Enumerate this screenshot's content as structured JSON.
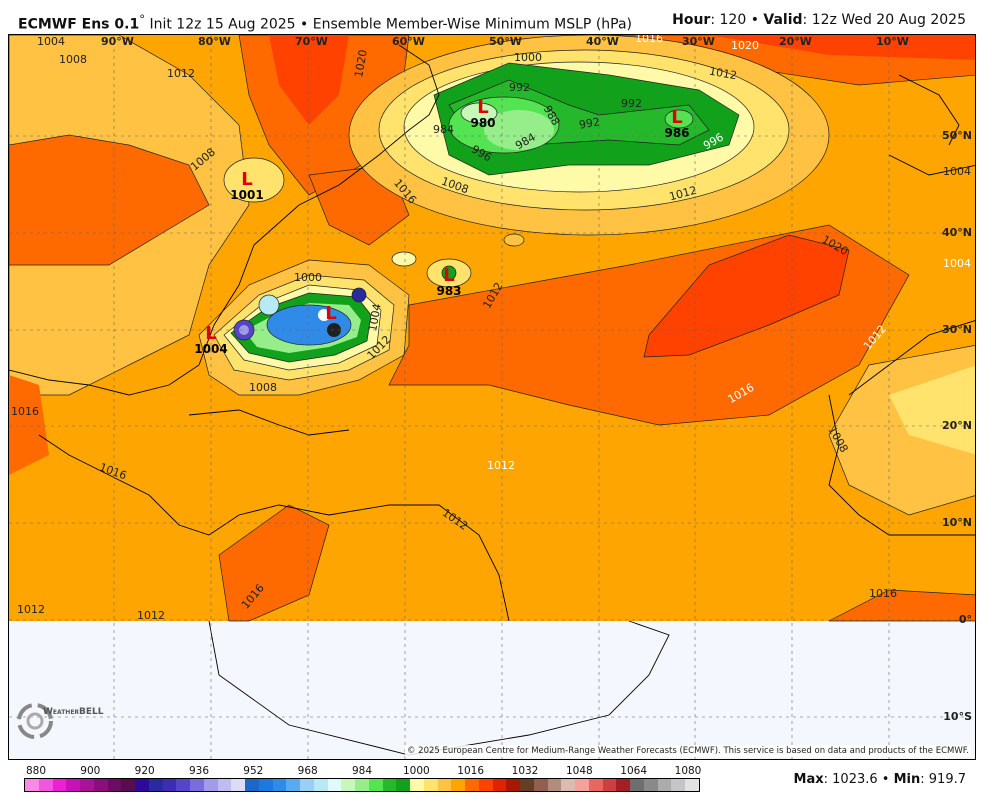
{
  "header": {
    "model": "ECMWF Ens 0.1",
    "degree": "°",
    "init": "Init 12z 15 Aug 2025",
    "sep": "•",
    "product": "Ensemble Member-Wise Minimum MSLP (hPa)",
    "hour_label": "Hour",
    "hour": "120",
    "valid_label": "Valid",
    "valid": "12z Wed 20 Aug 2025"
  },
  "map": {
    "longitudes": [
      "90°W",
      "80°W",
      "70°W",
      "60°W",
      "50°W",
      "40°W",
      "30°W",
      "20°W",
      "10°W"
    ],
    "latitudes": [
      "50°N",
      "40°N",
      "30°N",
      "20°N",
      "10°N",
      "0°",
      "10°S"
    ],
    "lows": [
      {
        "symbol": "L",
        "value": "1001"
      },
      {
        "symbol": "L",
        "value": "1004"
      },
      {
        "symbol": "L",
        "value": "983"
      },
      {
        "symbol": "L",
        "value": "980"
      },
      {
        "symbol": "L",
        "value": "986"
      },
      {
        "symbol": "L",
        "value": ""
      }
    ],
    "contour_labels": [
      "1004",
      "1008",
      "1012",
      "1016",
      "1020",
      "1000",
      "1004",
      "1012",
      "1016",
      "1008",
      "1012",
      "1020",
      "1016",
      "1012",
      "1008",
      "1016",
      "1012",
      "1012",
      "1012",
      "1012",
      "1016",
      "1000",
      "992",
      "984",
      "988",
      "984",
      "992",
      "996",
      "992",
      "996",
      "1008",
      "1012",
      "1016",
      "1016",
      "1020",
      "1004",
      "1012",
      "1008",
      "1004"
    ],
    "credit": "© 2025 European Centre for Medium-Range Weather Forecasts (ECMWF). This service is based on data and products of the ECMWF.",
    "logo": "WeatherBELL"
  },
  "colorbar": {
    "ticks": [
      "880",
      "900",
      "920",
      "936",
      "952",
      "968",
      "984",
      "1000",
      "1016",
      "1032",
      "1048",
      "1064",
      "1080"
    ],
    "colors": [
      "#f78be8",
      "#f256de",
      "#ea20d2",
      "#c813b4",
      "#a9139a",
      "#8a0e7f",
      "#6e0b66",
      "#5a0c4f",
      "#2d0a9b",
      "#2a2aa0",
      "#3f2cb4",
      "#5545c9",
      "#7a6cdb",
      "#a09ce9",
      "#bdbcf3",
      "#dcdcf8",
      "#1f66c9",
      "#1f78e0",
      "#2f8ae8",
      "#5aaaf0",
      "#98cff6",
      "#b7eaf5",
      "#e0fafa",
      "#c7f7b9",
      "#96ee8a",
      "#54e452",
      "#25b82a",
      "#12a11a",
      "#fffaa8",
      "#ffe36d",
      "#ffc243",
      "#ffa502",
      "#ff6a00",
      "#ff4200",
      "#e02200",
      "#a61800",
      "#663e23",
      "#935e4e",
      "#b48c7e",
      "#dcbab0",
      "#f5a09a",
      "#e8675f",
      "#cd4040",
      "#a31f24",
      "#6f6f6f",
      "#8a8a8a",
      "#acacac",
      "#c5c5c8",
      "#e2e2e2"
    ]
  },
  "stats": {
    "max_label": "Max",
    "max": "1023.6",
    "min_label": "Min",
    "min": "919.7",
    "sep": "•"
  }
}
